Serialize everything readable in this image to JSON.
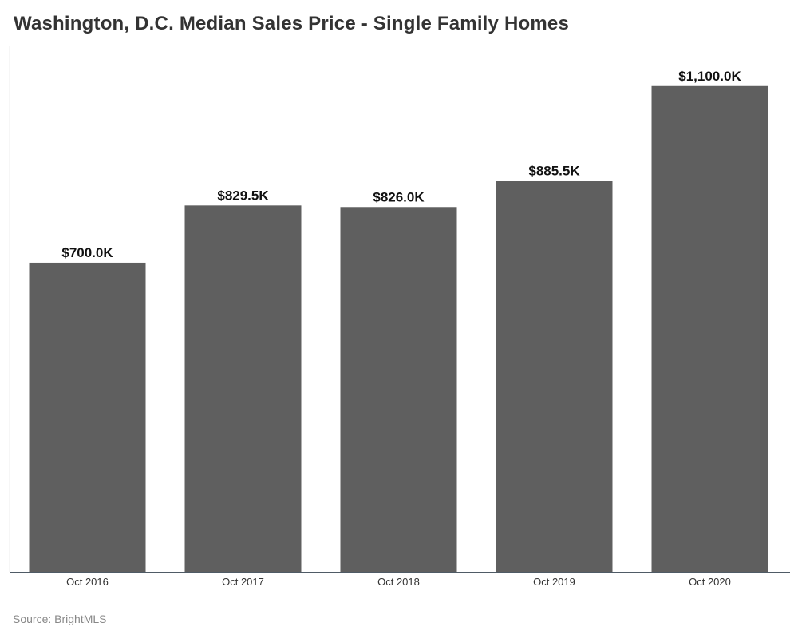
{
  "chart_data": {
    "type": "bar",
    "title": "Washington, D.C. Median Sales Price - Single Family Homes",
    "categories": [
      "Oct 2016",
      "Oct 2017",
      "Oct 2018",
      "Oct 2019",
      "Oct 2020"
    ],
    "values": [
      700.0,
      829.5,
      826.0,
      885.5,
      1100.0
    ],
    "data_labels": [
      "$700.0K",
      "$829.5K",
      "$826.0K",
      "$885.5K",
      "$1,100.0K"
    ],
    "unit": "$K",
    "xlabel": "",
    "ylabel": "",
    "ylim": [
      0,
      1190
    ],
    "grid": false,
    "legend": "none",
    "bar_color": "#5f5f5f",
    "axis_color": "#4f5b66",
    "source": "Source: BrightMLS"
  }
}
